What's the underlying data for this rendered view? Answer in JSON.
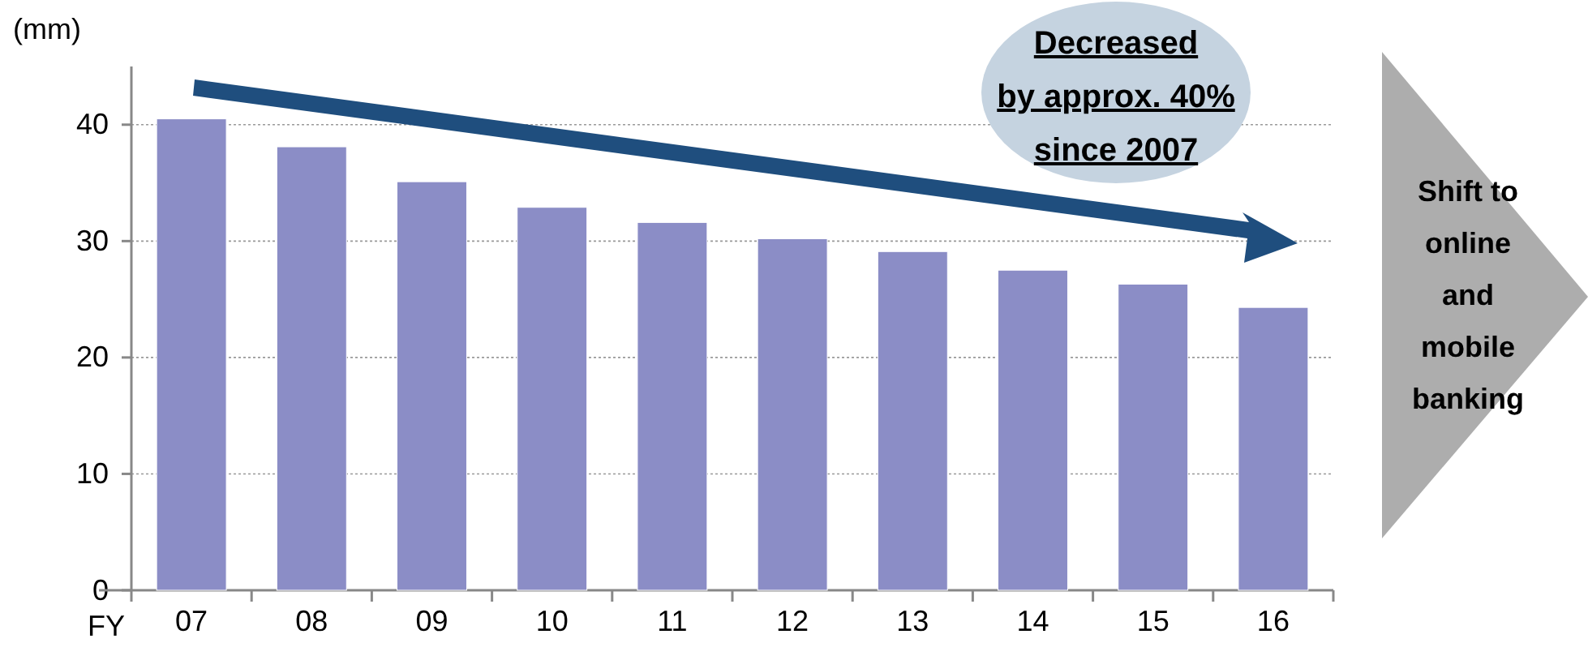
{
  "chart_data": {
    "type": "bar",
    "ylabel": "(mm)",
    "xlabel": "FY",
    "categories": [
      "07",
      "08",
      "09",
      "10",
      "11",
      "12",
      "13",
      "14",
      "15",
      "16"
    ],
    "values": [
      40.5,
      38.1,
      35.1,
      32.9,
      31.6,
      30.2,
      29.1,
      27.5,
      26.3,
      24.3
    ],
    "color": "#8b8dc6",
    "ylim": [
      0,
      45
    ],
    "yticks": [
      0,
      10,
      20,
      30,
      40
    ],
    "grid": "y",
    "annotations": [
      "Decreased by approx. 40% since 2007",
      "Shift to online and mobile banking"
    ]
  }
}
